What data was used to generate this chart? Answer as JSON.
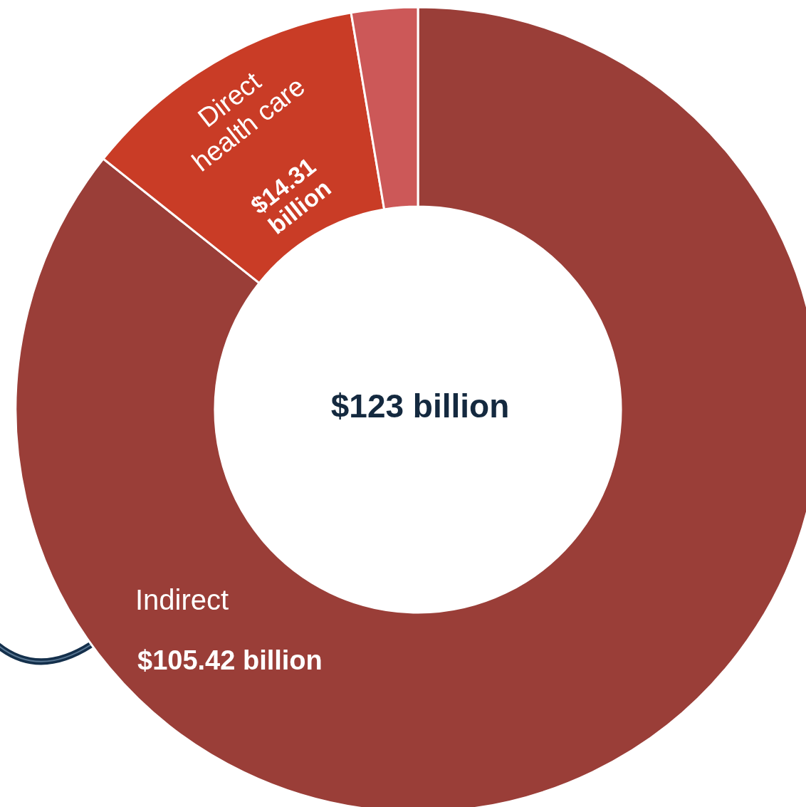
{
  "chart_data": {
    "type": "donut",
    "categories": [
      "Indirect",
      "Direct health care",
      null
    ],
    "values": [
      105.42,
      14.31,
      3.27
    ],
    "colors": [
      "#9a3e38",
      "#c93c26",
      "#cc5858"
    ],
    "value_labels": [
      "$105.42 billion",
      "$14.31 billion",
      null
    ],
    "annotations": [
      "$123 billion"
    ],
    "legend": false
  }
}
